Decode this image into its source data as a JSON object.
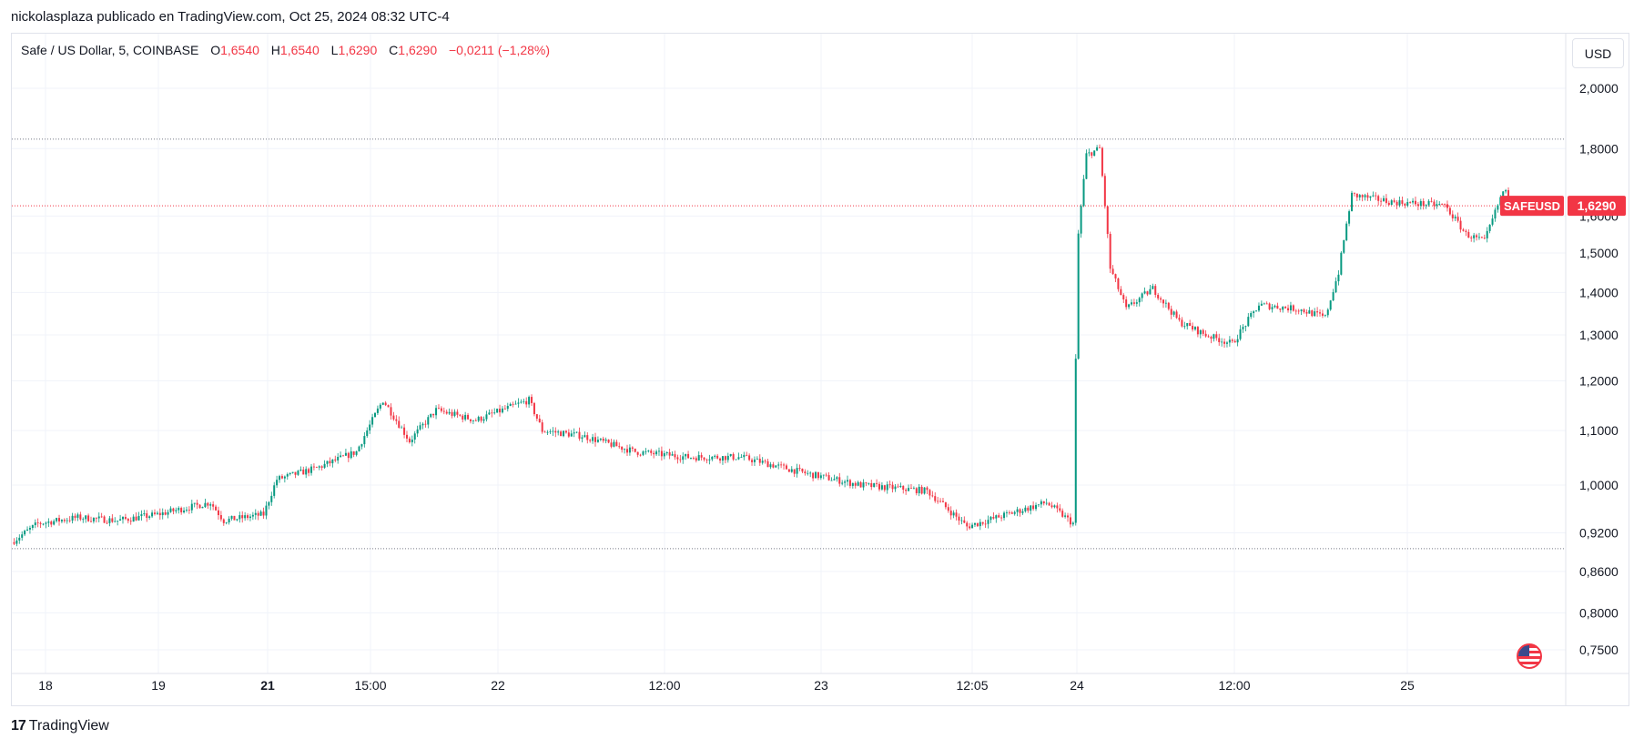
{
  "header": {
    "publisher_line": "nickolasplaza publicado en TradingView.com, Oct 25, 2024 08:32 UTC-4"
  },
  "legend": {
    "symbol": "Safe / US Dollar, 5, COINBASE",
    "o_label": "O",
    "o_value": "1,6540",
    "h_label": "H",
    "h_value": "1,6540",
    "l_label": "L",
    "l_value": "1,6290",
    "c_label": "C",
    "c_value": "1,6290",
    "change": "−0,0211 (−1,28%)"
  },
  "currency_button": "USD",
  "footer": {
    "brand": "TradingView",
    "logo_glyph": "17"
  },
  "colors": {
    "up": "#089981",
    "down": "#f23645",
    "grid": "#f0f3fa",
    "text": "#131722"
  },
  "chart_data": {
    "type": "candlestick",
    "symbol": "SAFEUSD",
    "interval": "5",
    "exchange": "COINBASE",
    "last_price": 1.629,
    "last_price_label": "1,6290",
    "last_label_text": "SAFEUSD",
    "price_scale": "log",
    "y_ticks": [
      {
        "value": 2.0,
        "label": "2,0000"
      },
      {
        "value": 1.8,
        "label": "1,8000"
      },
      {
        "value": 1.6,
        "label": "1,6000"
      },
      {
        "value": 1.5,
        "label": "1,5000"
      },
      {
        "value": 1.4,
        "label": "1,4000"
      },
      {
        "value": 1.3,
        "label": "1,3000"
      },
      {
        "value": 1.2,
        "label": "1,2000"
      },
      {
        "value": 1.1,
        "label": "1,1000"
      },
      {
        "value": 1.0,
        "label": "1,0000"
      },
      {
        "value": 0.92,
        "label": "0,9200"
      },
      {
        "value": 0.86,
        "label": "0,8600"
      },
      {
        "value": 0.8,
        "label": "0,8000"
      },
      {
        "value": 0.75,
        "label": "0,7500"
      }
    ],
    "x_ticks": [
      {
        "label": "18",
        "bold": false
      },
      {
        "label": "19",
        "bold": false
      },
      {
        "label": "21",
        "bold": true
      },
      {
        "label": "15:00",
        "bold": false
      },
      {
        "label": "22",
        "bold": false
      },
      {
        "label": "12:00",
        "bold": false
      },
      {
        "label": "23",
        "bold": false
      },
      {
        "label": "12:05",
        "bold": false
      },
      {
        "label": "24",
        "bold": false
      },
      {
        "label": "12:00",
        "bold": false
      },
      {
        "label": "25",
        "bold": false
      }
    ],
    "high_line": 1.83,
    "low_line": 0.895,
    "price_path": [
      [
        0,
        0.905
      ],
      [
        10,
        0.935
      ],
      [
        25,
        0.945
      ],
      [
        40,
        0.94
      ],
      [
        55,
        0.95
      ],
      [
        75,
        0.97
      ],
      [
        80,
        0.94
      ],
      [
        95,
        0.95
      ],
      [
        100,
        1.01
      ],
      [
        115,
        1.03
      ],
      [
        130,
        1.06
      ],
      [
        140,
        1.16
      ],
      [
        150,
        1.08
      ],
      [
        160,
        1.14
      ],
      [
        175,
        1.12
      ],
      [
        195,
        1.16
      ],
      [
        200,
        1.1
      ],
      [
        215,
        1.09
      ],
      [
        235,
        1.06
      ],
      [
        255,
        1.05
      ],
      [
        275,
        1.05
      ],
      [
        300,
        1.02
      ],
      [
        320,
        1.0
      ],
      [
        345,
        0.99
      ],
      [
        360,
        0.93
      ],
      [
        375,
        0.95
      ],
      [
        390,
        0.97
      ],
      [
        400,
        0.935
      ],
      [
        402,
        1.55
      ],
      [
        405,
        1.78
      ],
      [
        410,
        1.8
      ],
      [
        414,
        1.46
      ],
      [
        420,
        1.36
      ],
      [
        430,
        1.41
      ],
      [
        440,
        1.33
      ],
      [
        450,
        1.3
      ],
      [
        460,
        1.28
      ],
      [
        470,
        1.37
      ],
      [
        485,
        1.36
      ],
      [
        495,
        1.34
      ],
      [
        500,
        1.45
      ],
      [
        505,
        1.66
      ],
      [
        520,
        1.64
      ],
      [
        540,
        1.63
      ],
      [
        548,
        1.55
      ],
      [
        555,
        1.53
      ],
      [
        562,
        1.67
      ],
      [
        570,
        1.629
      ]
    ]
  }
}
